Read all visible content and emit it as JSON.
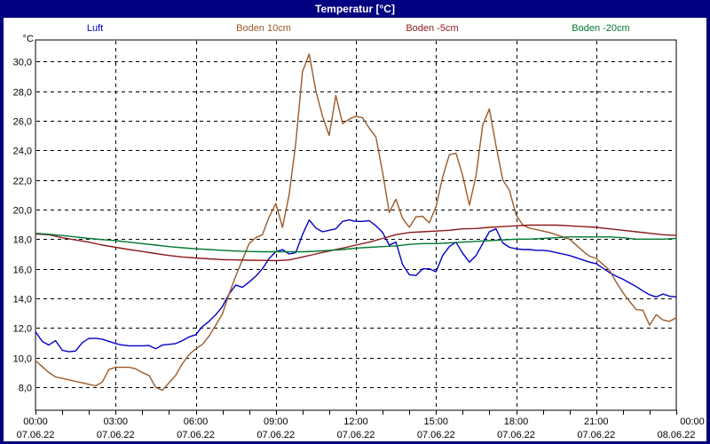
{
  "window": {
    "title": "Temperatur [°C]",
    "frame_color": "#000080",
    "title_text_color": "#FFFFFF"
  },
  "axes": {
    "unit_label": "°C",
    "xlim_hours": [
      0,
      24
    ],
    "ylim": [
      6.45,
      31.45
    ],
    "grid_on": true,
    "x_gridline_hours": [
      3,
      6,
      9,
      12,
      15,
      18,
      21
    ],
    "x_minor_tick_step": 1,
    "y_ticks": [
      {
        "value": 30,
        "label": "30,0"
      },
      {
        "value": 28,
        "label": "28,0"
      },
      {
        "value": 26,
        "label": "26,0"
      },
      {
        "value": 24,
        "label": "24,0"
      },
      {
        "value": 22,
        "label": "22,0"
      },
      {
        "value": 20,
        "label": "20,0"
      },
      {
        "value": 18,
        "label": "18,0"
      },
      {
        "value": 16,
        "label": "16,0"
      },
      {
        "value": 14,
        "label": "14,0"
      },
      {
        "value": 12,
        "label": "12,0"
      },
      {
        "value": 10,
        "label": "10,0"
      },
      {
        "value": 8,
        "label": "8,0"
      }
    ],
    "x_labels": [
      {
        "hour": 0,
        "time": "00:00",
        "date": "07.06.22"
      },
      {
        "hour": 3,
        "time": "03:00",
        "date": "07.06.22"
      },
      {
        "hour": 6,
        "time": "06:00",
        "date": "07.06.22"
      },
      {
        "hour": 9,
        "time": "09:00",
        "date": "07.06.22"
      },
      {
        "hour": 12,
        "time": "12:00",
        "date": "07.06.22"
      },
      {
        "hour": 15,
        "time": "15:00",
        "date": "07.06.22"
      },
      {
        "hour": 18,
        "time": "18:00",
        "date": "07.06.22"
      },
      {
        "hour": 21,
        "time": "21:00",
        "date": "07.06.22"
      },
      {
        "hour": 24,
        "time": "00:00",
        "date": "08.06.22",
        "time_dx": 18
      }
    ]
  },
  "chart_data": {
    "type": "line",
    "title": "Temperatur [°C]",
    "xlabel": "",
    "ylabel": "°C",
    "legend_position": "top",
    "series": [
      {
        "name": "Luft",
        "color": "#0000C8",
        "x_start": 0,
        "x_step": 0.25,
        "values": [
          11.75,
          11.1,
          10.85,
          11.15,
          10.5,
          10.4,
          10.45,
          11.0,
          11.3,
          11.3,
          11.25,
          11.1,
          10.95,
          10.85,
          10.8,
          10.8,
          10.8,
          10.82,
          10.6,
          10.85,
          10.9,
          10.95,
          11.15,
          11.4,
          11.55,
          12.1,
          12.45,
          12.9,
          13.45,
          14.3,
          14.9,
          14.75,
          15.1,
          15.5,
          16.0,
          16.7,
          17.15,
          17.3,
          17.0,
          17.1,
          18.3,
          19.3,
          18.75,
          18.5,
          18.6,
          18.7,
          19.2,
          19.3,
          19.2,
          19.2,
          19.25,
          18.9,
          18.45,
          17.6,
          17.8,
          16.3,
          15.6,
          15.55,
          16.0,
          16.0,
          15.8,
          16.9,
          17.5,
          17.8,
          17.05,
          16.45,
          16.9,
          17.7,
          18.5,
          18.7,
          17.75,
          17.45,
          17.35,
          17.3,
          17.3,
          17.25,
          17.25,
          17.2,
          17.1,
          17.0,
          16.9,
          16.75,
          16.6,
          16.45,
          16.35,
          16.05,
          15.75,
          15.5,
          15.3,
          15.05,
          14.8,
          14.5,
          14.25,
          14.1,
          14.3,
          14.15,
          14.1
        ]
      },
      {
        "name": "Boden 10cm",
        "color": "#9C5A28",
        "x_start": 0,
        "x_step": 0.25,
        "values": [
          9.8,
          9.4,
          9.0,
          8.7,
          8.6,
          8.5,
          8.4,
          8.3,
          8.2,
          8.1,
          8.35,
          9.2,
          9.35,
          9.35,
          9.35,
          9.25,
          9.0,
          8.8,
          8.0,
          7.8,
          8.3,
          8.8,
          9.6,
          10.2,
          10.6,
          10.9,
          11.45,
          12.2,
          12.95,
          14.3,
          15.5,
          16.6,
          17.7,
          18.1,
          18.3,
          19.5,
          20.4,
          18.8,
          21.0,
          24.5,
          29.3,
          30.5,
          28.0,
          26.3,
          25.0,
          27.7,
          25.8,
          26.1,
          26.3,
          26.2,
          25.5,
          24.9,
          22.5,
          19.8,
          20.7,
          19.4,
          18.8,
          19.5,
          19.55,
          19.1,
          20.2,
          22.2,
          23.7,
          23.8,
          22.3,
          20.3,
          22.3,
          25.7,
          26.8,
          24.3,
          22.0,
          21.3,
          19.65,
          18.95,
          18.75,
          18.65,
          18.55,
          18.45,
          18.3,
          18.15,
          18.0,
          17.6,
          17.2,
          16.85,
          16.7,
          16.3,
          15.9,
          15.1,
          14.4,
          13.8,
          13.25,
          13.2,
          12.2,
          12.9,
          12.55,
          12.45,
          12.7
        ]
      },
      {
        "name": "Boden -5cm",
        "color": "#8B1A1A",
        "x_start": 0,
        "x_step": 0.5,
        "values": [
          18.35,
          18.3,
          18.1,
          17.95,
          17.8,
          17.6,
          17.45,
          17.3,
          17.17,
          17.03,
          16.9,
          16.8,
          16.73,
          16.67,
          16.62,
          16.6,
          16.58,
          16.57,
          16.55,
          16.6,
          16.8,
          17.0,
          17.2,
          17.4,
          17.6,
          17.8,
          18.05,
          18.3,
          18.45,
          18.5,
          18.55,
          18.6,
          18.7,
          18.72,
          18.8,
          18.85,
          18.9,
          18.95,
          18.95,
          18.95,
          18.9,
          18.85,
          18.8,
          18.7,
          18.6,
          18.5,
          18.4,
          18.3,
          18.25
        ]
      },
      {
        "name": "Boden -20cm",
        "color": "#007830",
        "x_start": 0,
        "x_step": 0.5,
        "values": [
          18.4,
          18.33,
          18.25,
          18.15,
          18.05,
          17.97,
          17.9,
          17.8,
          17.7,
          17.6,
          17.5,
          17.42,
          17.35,
          17.3,
          17.25,
          17.2,
          17.17,
          17.15,
          17.15,
          17.15,
          17.15,
          17.18,
          17.25,
          17.3,
          17.4,
          17.45,
          17.5,
          17.55,
          17.65,
          17.7,
          17.7,
          17.75,
          17.8,
          17.85,
          17.9,
          17.95,
          18.0,
          18.0,
          18.05,
          18.1,
          18.15,
          18.15,
          18.15,
          18.15,
          18.1,
          18.0,
          18.0,
          18.0,
          18.05
        ]
      }
    ]
  }
}
